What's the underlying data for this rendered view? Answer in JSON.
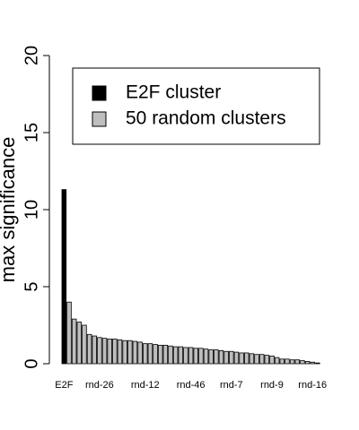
{
  "chart_data": {
    "type": "bar",
    "ylabel": "max significance",
    "categories": [
      "E2F",
      null,
      null,
      null,
      null,
      null,
      null,
      "rnd-26",
      null,
      null,
      null,
      null,
      null,
      null,
      null,
      null,
      "rnd-12",
      null,
      null,
      null,
      null,
      null,
      null,
      null,
      null,
      "rnd-46",
      null,
      null,
      null,
      null,
      null,
      null,
      null,
      "rnd-7",
      null,
      null,
      null,
      null,
      null,
      null,
      null,
      "rnd-9",
      null,
      null,
      null,
      null,
      null,
      null,
      null,
      "rnd-16",
      null
    ],
    "series": [
      {
        "name": "E2F cluster",
        "color": "#000000",
        "values": [
          11.3,
          null,
          null,
          null,
          null,
          null,
          null,
          null,
          null,
          null,
          null,
          null,
          null,
          null,
          null,
          null,
          null,
          null,
          null,
          null,
          null,
          null,
          null,
          null,
          null,
          null,
          null,
          null,
          null,
          null,
          null,
          null,
          null,
          null,
          null,
          null,
          null,
          null,
          null,
          null,
          null,
          null,
          null,
          null,
          null,
          null,
          null,
          null,
          null,
          null,
          null
        ]
      },
      {
        "name": "50 random clusters",
        "color": "#bebebe",
        "values": [
          null,
          4.0,
          2.9,
          2.7,
          2.5,
          1.9,
          1.8,
          1.7,
          1.65,
          1.6,
          1.6,
          1.55,
          1.5,
          1.5,
          1.45,
          1.4,
          1.3,
          1.3,
          1.25,
          1.2,
          1.2,
          1.15,
          1.1,
          1.1,
          1.05,
          1.05,
          1.0,
          1.0,
          0.95,
          0.9,
          0.9,
          0.85,
          0.8,
          0.8,
          0.75,
          0.7,
          0.7,
          0.65,
          0.6,
          0.6,
          0.55,
          0.5,
          0.4,
          0.3,
          0.3,
          0.25,
          0.25,
          0.2,
          0.15,
          0.1,
          0.05
        ]
      }
    ],
    "ylim": [
      0,
      20
    ],
    "yticks": [
      0,
      5,
      10,
      15,
      20
    ],
    "legend": "top-right"
  }
}
